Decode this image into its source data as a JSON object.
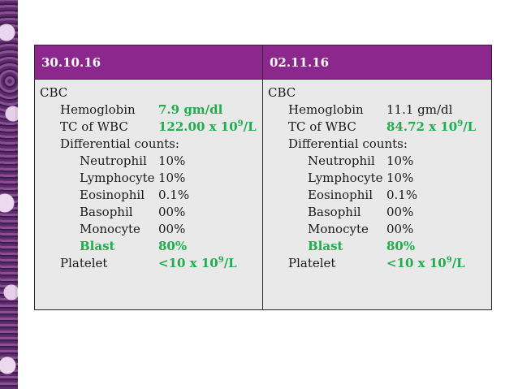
{
  "columns": [
    {
      "date": "30.10.16",
      "heading": "CBC",
      "hemoglobin": {
        "label": "Hemoglobin",
        "value": "7.9 gm/dl"
      },
      "wbc": {
        "label": "TC of WBC",
        "value_main": "122.00 x 10",
        "value_exp": "9",
        "value_unit": "/L"
      },
      "differential_label": "Differential counts:",
      "differential": [
        {
          "label": "Neutrophil",
          "value": "10%"
        },
        {
          "label": "Lymphocyte",
          "value": "10%"
        },
        {
          "label": "Eosinophil",
          "value": "0.1%"
        },
        {
          "label": "Basophil",
          "value": "00%"
        },
        {
          "label": "Monocyte",
          "value": "00%"
        },
        {
          "label": "Blast",
          "value": "80%"
        }
      ],
      "platelet": {
        "label": "Platelet",
        "value_main": "<10 x 10",
        "value_exp": "9",
        "value_unit": "/L"
      }
    },
    {
      "date": "02.11.16",
      "heading": "CBC",
      "hemoglobin": {
        "label": "Hemoglobin",
        "value": "11.1 gm/dl"
      },
      "wbc": {
        "label": "TC of WBC",
        "value_main": "84.72 x 10",
        "value_exp": "9",
        "value_unit": "/L"
      },
      "differential_label": "Differential counts:",
      "differential": [
        {
          "label": "Neutrophil",
          "value": "10%"
        },
        {
          "label": "Lymphocyte",
          "value": "10%"
        },
        {
          "label": "Eosinophil",
          "value": "0.1%"
        },
        {
          "label": "Basophil",
          "value": "00%"
        },
        {
          "label": "Monocyte",
          "value": "00%"
        },
        {
          "label": "Blast",
          "value": "80%"
        }
      ],
      "platelet": {
        "label": "Platelet",
        "value_main": "<10 x 10",
        "value_exp": "9",
        "value_unit": "/L"
      }
    }
  ],
  "colors": {
    "header_bg": "#8c278d",
    "header_text": "#ffffff",
    "cell_bg": "#e9e9e9",
    "highlight": "#1fae4c"
  }
}
